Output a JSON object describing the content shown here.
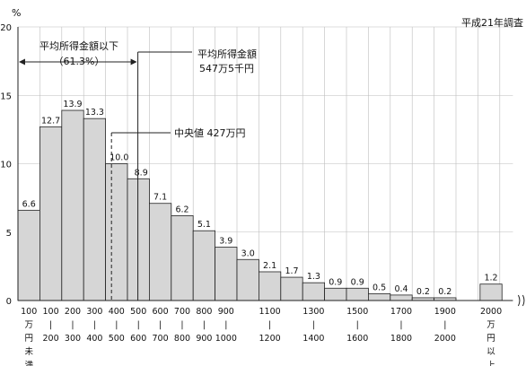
{
  "chart_data": {
    "type": "bar",
    "survey_note": "平成21年調査",
    "y_unit": "%",
    "ylim": [
      0,
      20
    ],
    "yticks": [
      "0",
      "5",
      "10",
      "15",
      "20"
    ],
    "grid": true,
    "values": [
      6.6,
      12.7,
      13.9,
      13.3,
      10.0,
      8.9,
      7.1,
      6.2,
      5.1,
      3.9,
      3.0,
      2.1,
      1.7,
      1.3,
      0.9,
      0.9,
      0.5,
      0.4,
      0.2,
      0.2,
      1.2
    ],
    "value_labels": [
      "6.6",
      "12.7",
      "13.9",
      "13.3",
      "10.0",
      "8.9",
      "7.1",
      "6.2",
      "5.1",
      "3.9",
      "3.0",
      "2.1",
      "1.7",
      "1.3",
      "0.9",
      "0.9",
      "0.5",
      "0.4",
      "0.2",
      "0.2",
      "1.2"
    ],
    "x_labels": [
      {
        "lines": [
          "100",
          "万",
          "円",
          "未",
          "満"
        ]
      },
      {
        "lines": [
          "100",
          "|",
          "200"
        ]
      },
      {
        "lines": [
          "200",
          "|",
          "300"
        ]
      },
      {
        "lines": [
          "300",
          "|",
          "400"
        ]
      },
      {
        "lines": [
          "400",
          "|",
          "500"
        ]
      },
      {
        "lines": [
          "500",
          "|",
          "600"
        ]
      },
      {
        "lines": [
          "600",
          "|",
          "700"
        ]
      },
      {
        "lines": [
          "700",
          "|",
          "800"
        ]
      },
      {
        "lines": [
          "800",
          "|",
          "900"
        ]
      },
      {
        "lines": [
          "900",
          "|",
          "1000"
        ]
      },
      {
        "lines": []
      },
      {
        "lines": [
          "1100",
          "|",
          "1200"
        ]
      },
      {
        "lines": []
      },
      {
        "lines": [
          "1300",
          "|",
          "1400"
        ]
      },
      {
        "lines": []
      },
      {
        "lines": [
          "1500",
          "|",
          "1600"
        ]
      },
      {
        "lines": []
      },
      {
        "lines": [
          "1700",
          "|",
          "1800"
        ]
      },
      {
        "lines": []
      },
      {
        "lines": [
          "1900",
          "|",
          "2000"
        ]
      },
      {
        "lines": [
          "2000",
          "万",
          "円",
          "以",
          "上"
        ]
      }
    ],
    "annotations": {
      "below_mean_label": "平均所得金額以下",
      "below_mean_pct": "（61.3%）",
      "mean_label": "平均所得金額",
      "mean_value": "547万5千円",
      "mean_value_manyen": 547.5,
      "median_label": "中央値 427万円",
      "median_value_manyen": 427
    },
    "colors": {
      "bar_fill": "#d6d6d6",
      "bar_stroke": "#222222",
      "grid": "#bdbdbd",
      "axis": "#222222"
    }
  }
}
